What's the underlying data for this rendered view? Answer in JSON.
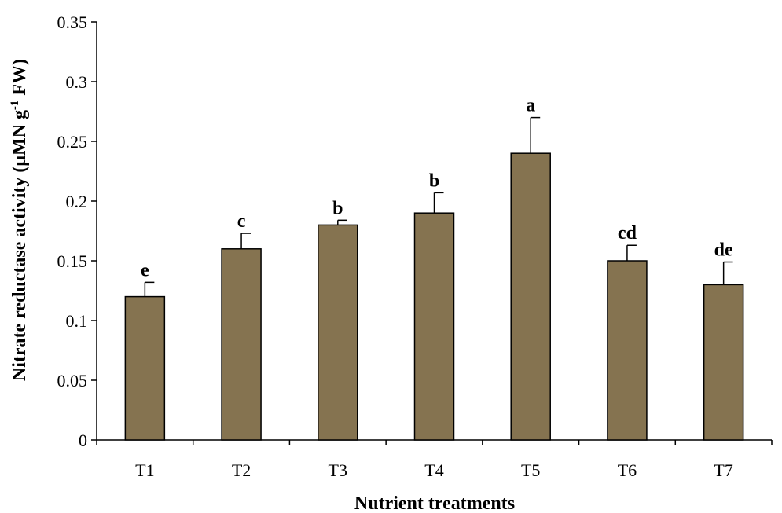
{
  "chart_data": {
    "type": "bar",
    "categories": [
      "T1",
      "T2",
      "T3",
      "T4",
      "T5",
      "T6",
      "T7"
    ],
    "values": [
      0.12,
      0.16,
      0.18,
      0.19,
      0.24,
      0.15,
      0.13
    ],
    "errors": [
      0.012,
      0.013,
      0.004,
      0.017,
      0.03,
      0.013,
      0.019
    ],
    "significance": [
      "e",
      "c",
      "b",
      "b",
      "a",
      "cd",
      "de"
    ],
    "xlabel": "Nutrient treatments",
    "ylabel": {
      "main": "Nitrate reductase activity (μMN g",
      "sup": "-1",
      "tail": " FW)"
    },
    "ylim": [
      0,
      0.35
    ],
    "yticks": [
      "0",
      "0.05",
      "0.1",
      "0.15",
      "0.2",
      "0.25",
      "0.3",
      "0.35"
    ],
    "bar_color": "#857350",
    "grid": false,
    "legend": "none"
  }
}
